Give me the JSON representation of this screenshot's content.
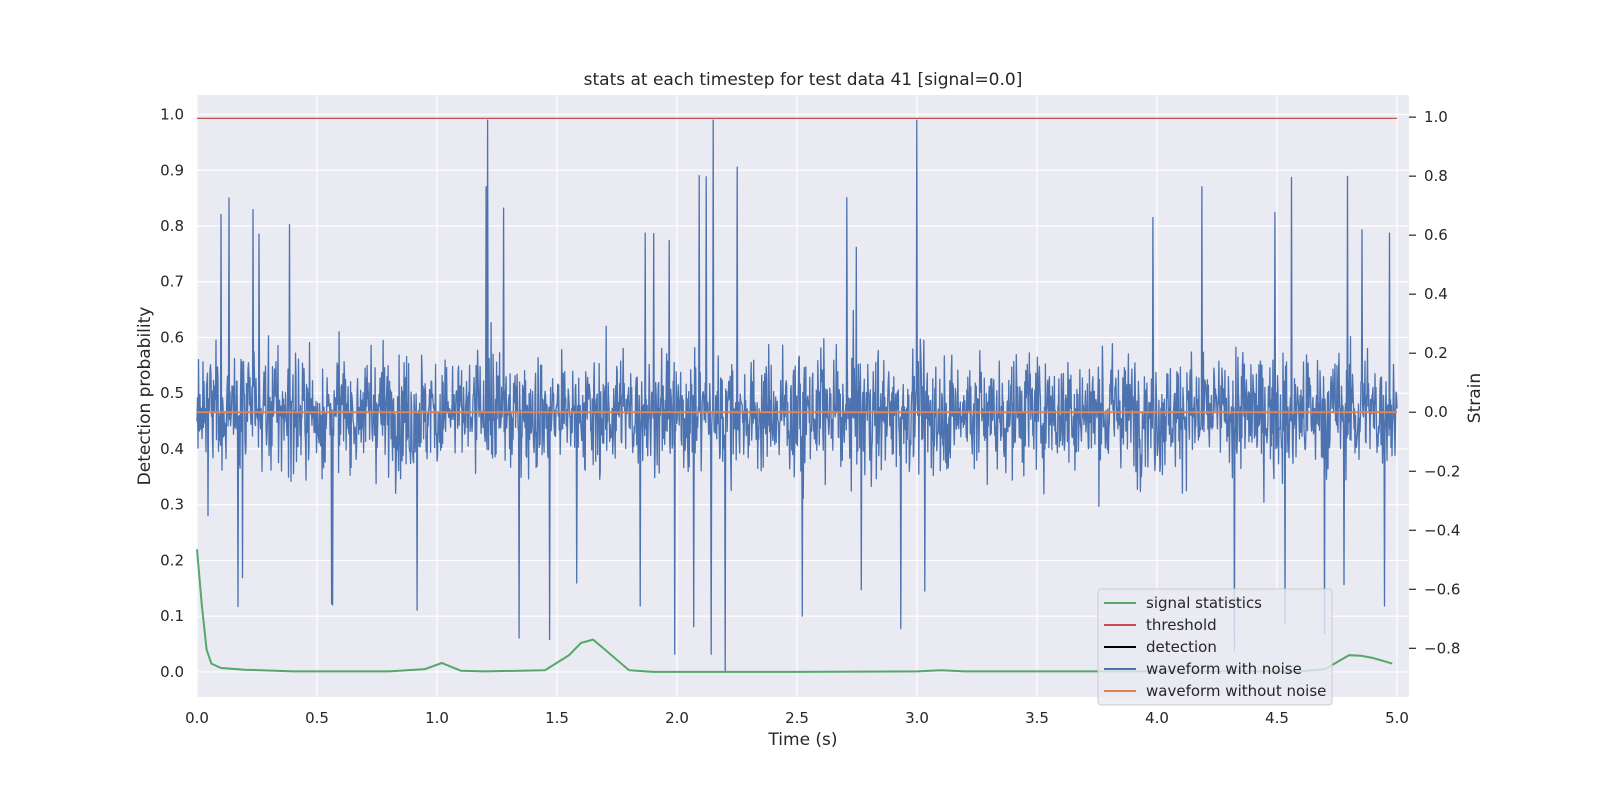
{
  "chart_data": {
    "type": "line",
    "title": "stats at each timestep for test data 41 [signal=0.0]",
    "xlabel": "Time (s)",
    "ylabel": "Detection probability",
    "y2label": "Strain",
    "xlim": [
      0.0,
      5.05
    ],
    "ylim": [
      -0.045,
      1.035
    ],
    "y2lim": [
      -0.965,
      1.075
    ],
    "xticks": [
      "0.0",
      "0.5",
      "1.0",
      "1.5",
      "2.0",
      "2.5",
      "3.0",
      "3.5",
      "4.0",
      "4.5",
      "5.0"
    ],
    "yticks": [
      "0.0",
      "0.1",
      "0.2",
      "0.3",
      "0.4",
      "0.5",
      "0.6",
      "0.7",
      "0.8",
      "0.9",
      "1.0"
    ],
    "y2ticks": [
      "1.0",
      "0.8",
      "0.6",
      "0.4",
      "0.2",
      "0.0",
      "−0.2",
      "−0.4",
      "−0.6",
      "−0.8"
    ],
    "grid": true,
    "legend_position": "lower-right",
    "legend": [
      "signal statistics",
      "threshold",
      "detection",
      "waveform with noise",
      "waveform without noise"
    ],
    "colors": {
      "signal_statistics": "#55a868",
      "threshold": "#c44e52",
      "detection": "#000000",
      "waveform_with_noise": "#4c72b0",
      "waveform_without_noise": "#dd8452",
      "axes_background": "#eaeaf2",
      "grid": "#ffffff"
    },
    "series": [
      {
        "name": "signal statistics",
        "axis": "left",
        "x": [
          0.0,
          0.02,
          0.04,
          0.06,
          0.1,
          0.2,
          0.4,
          0.8,
          0.95,
          1.02,
          1.1,
          1.2,
          1.45,
          1.55,
          1.6,
          1.65,
          1.7,
          1.8,
          1.9,
          2.0,
          2.5,
          3.0,
          3.1,
          3.2,
          3.5,
          4.0,
          4.5,
          4.6,
          4.7,
          4.8,
          4.85,
          4.9,
          4.98
        ],
        "values": [
          0.22,
          0.12,
          0.04,
          0.015,
          0.007,
          0.004,
          0.001,
          0.001,
          0.005,
          0.016,
          0.002,
          0.001,
          0.003,
          0.03,
          0.052,
          0.058,
          0.04,
          0.003,
          0.0,
          0.0,
          0.0,
          0.001,
          0.003,
          0.001,
          0.001,
          0.001,
          0.001,
          0.001,
          0.005,
          0.03,
          0.029,
          0.025,
          0.015
        ]
      },
      {
        "name": "threshold",
        "axis": "left",
        "x": [
          0.0,
          5.0
        ],
        "values": [
          0.993,
          0.993
        ]
      },
      {
        "name": "waveform with noise",
        "axis": "right",
        "x_range": [
          0.0,
          5.0
        ],
        "samples": 2400,
        "typical_range": [
          -0.45,
          0.45
        ],
        "peaks": [
          {
            "x": 1.21,
            "y": 0.99
          },
          {
            "x": 2.15,
            "y": 0.99
          },
          {
            "x": 3.0,
            "y": 0.99
          },
          {
            "x": 2.2,
            "y": -0.88
          },
          {
            "x": 1.47,
            "y": -0.77
          },
          {
            "x": 1.99,
            "y": -0.82
          },
          {
            "x": 0.1,
            "y": 0.67
          }
        ]
      },
      {
        "name": "waveform without noise",
        "axis": "right",
        "x": [
          0.0,
          5.0
        ],
        "values": [
          0.0,
          0.0
        ]
      }
    ]
  }
}
